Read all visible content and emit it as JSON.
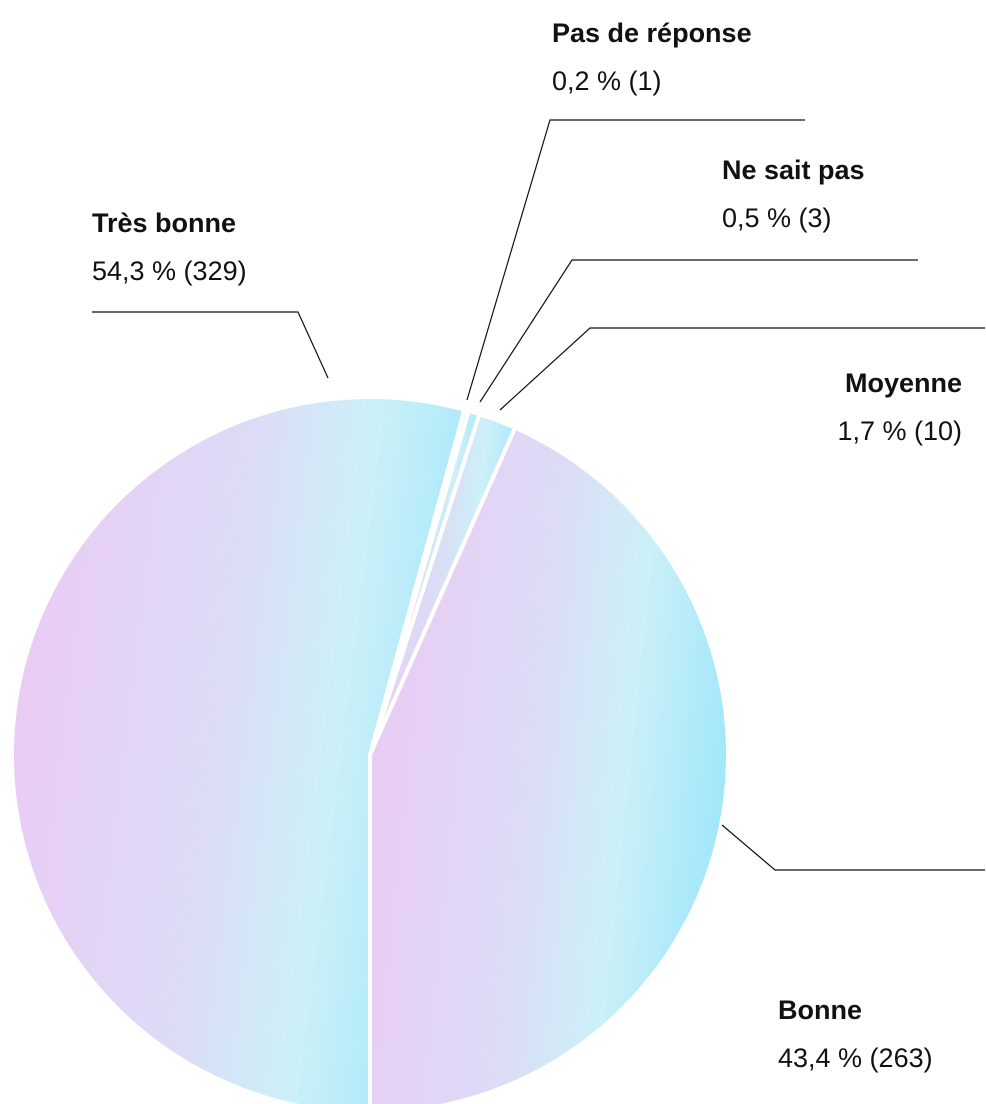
{
  "chart_data": {
    "type": "pie",
    "categories": [
      "Très bonne",
      "Pas de réponse",
      "Ne sait pas",
      "Moyenne",
      "Bonne"
    ],
    "values": [
      54.3,
      0.2,
      0.5,
      1.7,
      43.4
    ],
    "value_labels": [
      "54,3 % (329)",
      "0,2 % (1)",
      "0,5 % (3)",
      "1,7 % (10)",
      "43,4 % (263)"
    ]
  }
}
